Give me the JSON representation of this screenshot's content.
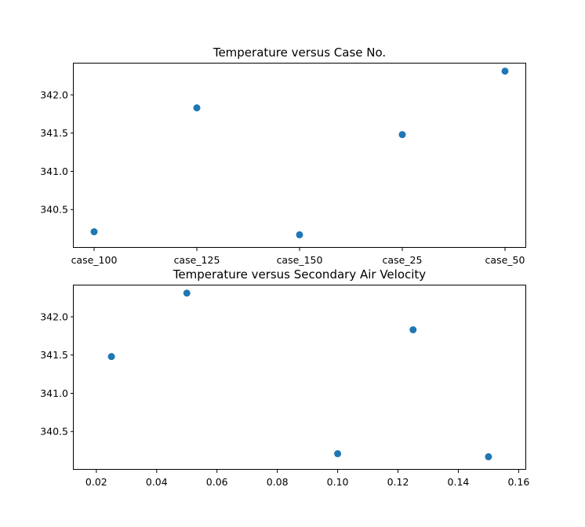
{
  "colors": {
    "marker": "#1f77b4",
    "axes": "#000000",
    "background": "#ffffff"
  },
  "chart_data": [
    {
      "type": "scatter",
      "title": "Temperature versus Case No.",
      "xlabel": "",
      "ylabel": "",
      "x_type": "categorical",
      "categories": [
        "case_100",
        "case_125",
        "case_150",
        "case_25",
        "case_50"
      ],
      "x": [
        "case_100",
        "case_125",
        "case_150",
        "case_25",
        "case_50"
      ],
      "y": [
        340.21,
        341.83,
        340.17,
        341.48,
        342.31
      ],
      "ylim": [
        340.0,
        342.41
      ],
      "yticks": [
        340.5,
        341.0,
        341.5,
        342.0
      ],
      "ytick_labels": [
        "340.5",
        "341.0",
        "341.5",
        "342.0"
      ],
      "grid": false,
      "legend": "none"
    },
    {
      "type": "scatter",
      "title": "Temperature versus Secondary Air Velocity",
      "xlabel": "",
      "ylabel": "",
      "x_type": "numeric",
      "x": [
        0.025,
        0.05,
        0.1,
        0.125,
        0.15
      ],
      "y": [
        341.48,
        342.31,
        340.21,
        341.83,
        340.17
      ],
      "xlim": [
        0.0125,
        0.1625
      ],
      "xticks": [
        0.02,
        0.04,
        0.06,
        0.08,
        0.1,
        0.12,
        0.14,
        0.16
      ],
      "xtick_labels": [
        "0.02",
        "0.04",
        "0.06",
        "0.08",
        "0.10",
        "0.12",
        "0.14",
        "0.16"
      ],
      "ylim": [
        340.0,
        342.41
      ],
      "yticks": [
        340.5,
        341.0,
        341.5,
        342.0
      ],
      "ytick_labels": [
        "340.5",
        "341.0",
        "341.5",
        "342.0"
      ],
      "grid": false,
      "legend": "none"
    }
  ]
}
